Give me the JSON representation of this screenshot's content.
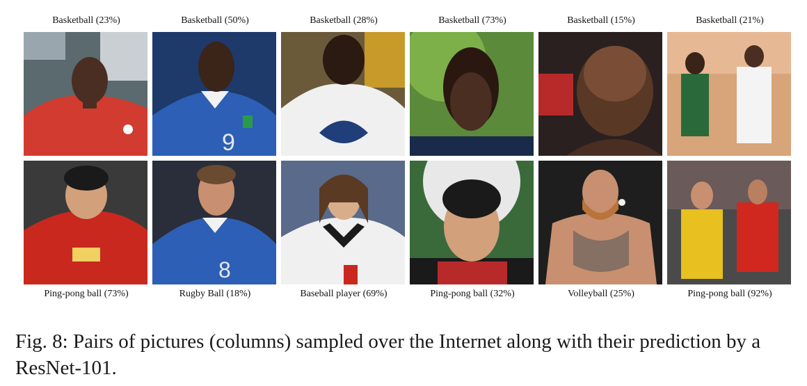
{
  "figure": {
    "top_labels": [
      "Basketball (23%)",
      "Basketball (50%)",
      "Basketball (28%)",
      "Basketball (73%)",
      "Basketball (15%)",
      "Basketball (21%)"
    ],
    "bottom_labels": [
      "Ping-pong ball (73%)",
      "Rugby Ball (18%)",
      "Baseball player (69%)",
      "Ping-pong ball (32%)",
      "Volleyball (25%)",
      "Ping-pong ball (92%)"
    ],
    "jersey_numbers": {
      "top_col2": "9",
      "bottom_col2": "8"
    },
    "caption": "Fig. 8: Pairs of pictures (columns) sampled over the Internet along with their prediction by a ResNet-101."
  }
}
